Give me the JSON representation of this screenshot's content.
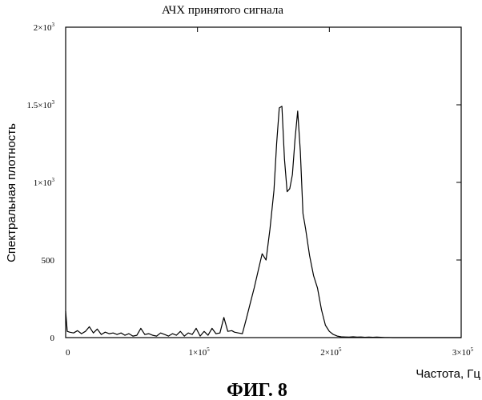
{
  "chart_data": {
    "type": "line",
    "title": "АЧХ принятого сигнала",
    "xlabel": "Частота, Гц",
    "ylabel": "Спектральная плотность",
    "xlim": [
      0,
      300000
    ],
    "ylim": [
      0,
      2000
    ],
    "x_ticks": [
      {
        "value": 0,
        "label": "0",
        "exp": ""
      },
      {
        "value": 100000,
        "label": "1×10",
        "exp": "5"
      },
      {
        "value": 200000,
        "label": "2×10",
        "exp": "5"
      },
      {
        "value": 300000,
        "label": "3×10",
        "exp": "5"
      }
    ],
    "y_ticks": [
      {
        "value": 0,
        "label": "0",
        "exp": ""
      },
      {
        "value": 500,
        "label": "500",
        "exp": ""
      },
      {
        "value": 1000,
        "label": "1×10",
        "exp": "3"
      },
      {
        "value": 1500,
        "label": "1.5×10",
        "exp": "3"
      },
      {
        "value": 2000,
        "label": "2×10",
        "exp": "3"
      }
    ],
    "grid": false,
    "series": [
      {
        "name": "",
        "color": "#000000",
        "x": [
          0,
          1200,
          3000,
          6000,
          9000,
          12000,
          15000,
          18000,
          21000,
          24000,
          27000,
          30000,
          33000,
          36000,
          39000,
          42000,
          45000,
          48000,
          51000,
          54000,
          57000,
          60000,
          63000,
          66000,
          69000,
          72000,
          75000,
          78000,
          81000,
          84000,
          87000,
          90000,
          93000,
          96000,
          99000,
          102000,
          105000,
          108000,
          111000,
          114000,
          117000,
          120000,
          123000,
          126000,
          128000,
          131000,
          134000,
          137000,
          140000,
          143000,
          146000,
          149000,
          152000,
          155000,
          158000,
          160000,
          162000,
          164000,
          166000,
          168000,
          170000,
          172000,
          174000,
          176000,
          178000,
          180000,
          182000,
          185000,
          188000,
          191000,
          194000,
          197000,
          200000,
          203000,
          206000,
          209000,
          212000,
          215000,
          218000,
          221000,
          224000,
          227000,
          230000,
          233000,
          236000,
          239000,
          242000,
          245000,
          248000,
          252000,
          256000,
          260000,
          265000,
          270000,
          275000,
          280000,
          285000,
          290000,
          295000,
          300000
        ],
        "y": [
          170,
          40,
          35,
          30,
          45,
          25,
          40,
          70,
          30,
          55,
          20,
          35,
          25,
          30,
          20,
          30,
          15,
          25,
          10,
          15,
          60,
          20,
          25,
          15,
          10,
          30,
          20,
          10,
          25,
          15,
          40,
          10,
          30,
          20,
          60,
          10,
          40,
          15,
          60,
          25,
          30,
          130,
          40,
          45,
          35,
          30,
          25,
          120,
          220,
          320,
          430,
          540,
          500,
          700,
          950,
          1250,
          1480,
          1490,
          1150,
          940,
          960,
          1050,
          1280,
          1460,
          1200,
          800,
          700,
          530,
          400,
          320,
          180,
          80,
          40,
          20,
          10,
          5,
          4,
          3,
          5,
          3,
          4,
          2,
          3,
          2,
          3,
          2,
          1,
          1,
          0,
          0,
          0,
          0,
          0,
          0,
          0,
          0,
          0,
          0,
          0,
          0
        ]
      }
    ]
  },
  "figure": {
    "caption": "ФИГ. 8"
  }
}
